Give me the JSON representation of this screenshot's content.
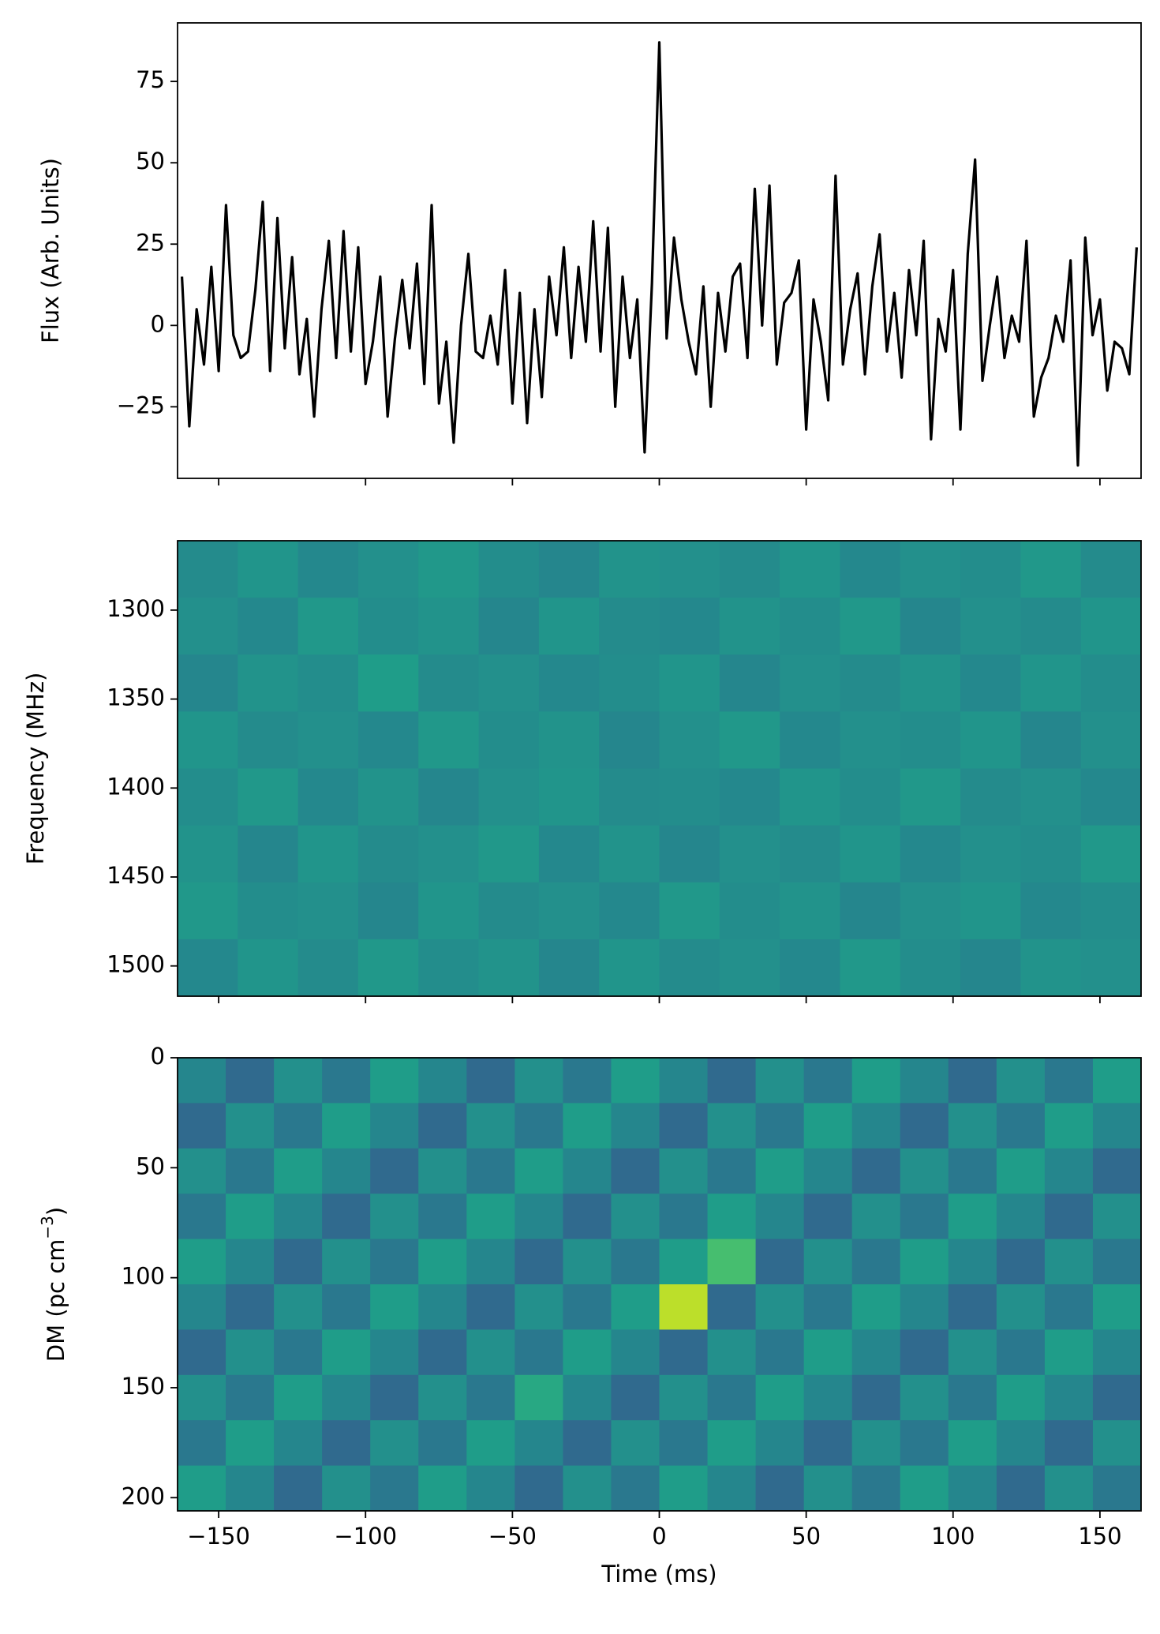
{
  "chart_data": [
    {
      "type": "line",
      "ylabel": "Flux (Arb. Units)",
      "color": "#000000",
      "x": [
        -162.5,
        -160,
        -157.5,
        -155,
        -152.5,
        -150,
        -147.5,
        -145,
        -142.5,
        -140,
        -137.5,
        -135,
        -132.5,
        -130,
        -127.5,
        -125,
        -122.5,
        -120,
        -117.5,
        -115,
        -112.5,
        -110,
        -107.5,
        -105,
        -102.5,
        -100,
        -97.5,
        -95,
        -92.5,
        -90,
        -87.5,
        -85,
        -82.5,
        -80,
        -77.5,
        -75,
        -72.5,
        -70,
        -67.5,
        -65,
        -62.5,
        -60,
        -57.5,
        -55,
        -52.5,
        -50,
        -47.5,
        -45,
        -42.5,
        -40,
        -37.5,
        -35,
        -32.5,
        -30,
        -27.5,
        -25,
        -22.5,
        -20,
        -17.5,
        -15,
        -12.5,
        -10,
        -7.5,
        -5,
        -2.5,
        0,
        2.5,
        5,
        7.5,
        10,
        12.5,
        15,
        17.5,
        20,
        22.5,
        25,
        27.5,
        30,
        32.5,
        35,
        37.5,
        40,
        42.5,
        45,
        47.5,
        50,
        52.5,
        55,
        57.5,
        60,
        62.5,
        65,
        67.5,
        70,
        72.5,
        75,
        77.5,
        80,
        82.5,
        85,
        87.5,
        90,
        92.5,
        95,
        97.5,
        100,
        102.5,
        105,
        107.5,
        110,
        112.5,
        115,
        117.5,
        120,
        122.5,
        125,
        127.5,
        130,
        132.5,
        135,
        137.5,
        140,
        142.5,
        145,
        147.5,
        150,
        152.5,
        155,
        157.5,
        160,
        162.5
      ],
      "values": [
        15,
        -31,
        5,
        -12,
        18,
        -14,
        37,
        -3,
        -10,
        -8,
        11,
        38,
        -14,
        33,
        -7,
        21,
        -15,
        2,
        -28,
        5,
        26,
        -10,
        29,
        -8,
        24,
        -18,
        -5,
        15,
        -28,
        -4,
        14,
        -7,
        19,
        -18,
        37,
        -24,
        -5,
        -36,
        0,
        22,
        -8,
        -10,
        3,
        -12,
        17,
        -24,
        10,
        -30,
        5,
        -22,
        15,
        -3,
        24,
        -10,
        18,
        -5,
        32,
        -8,
        30,
        -25,
        15,
        -10,
        8,
        -39,
        13,
        87,
        -4,
        27,
        8,
        -5,
        -15,
        12,
        -25,
        10,
        -8,
        15,
        19,
        -10,
        42,
        0,
        43,
        -12,
        7,
        10,
        20,
        -32,
        8,
        -5,
        -23,
        46,
        -12,
        5,
        16,
        -15,
        12,
        28,
        -8,
        10,
        -16,
        17,
        -3,
        26,
        -35,
        2,
        -8,
        17,
        -32,
        22,
        51,
        -17,
        0,
        15,
        -10,
        3,
        -5,
        26,
        -28,
        -16,
        -10,
        3,
        -5,
        20,
        -43,
        27,
        -3,
        8,
        -20,
        -5,
        -7,
        -15,
        24
      ],
      "xlim": [
        -164,
        164
      ],
      "xticks": [
        -150,
        -100,
        -50,
        0,
        50,
        100,
        150
      ],
      "ylim": [
        -47,
        93
      ],
      "yticks": [
        {
          "value": -25,
          "label": "−25"
        },
        0,
        25,
        50,
        75
      ]
    },
    {
      "type": "heatmap",
      "ylabel": "Frequency (MHz)",
      "colormap": "viridis",
      "xlim": [
        -164,
        164
      ],
      "xticks": [
        -150,
        -100,
        -50,
        0,
        50,
        100,
        150
      ],
      "ylim": [
        1517,
        1261
      ],
      "yticks": [
        1300,
        1350,
        1400,
        1450,
        1500
      ],
      "z": [
        [
          0.48,
          0.52,
          0.47,
          0.5,
          0.53,
          0.49,
          0.46,
          0.51,
          0.5,
          0.48,
          0.52,
          0.47,
          0.5,
          0.49,
          0.53,
          0.48
        ],
        [
          0.5,
          0.47,
          0.53,
          0.49,
          0.51,
          0.46,
          0.52,
          0.48,
          0.47,
          0.51,
          0.49,
          0.53,
          0.46,
          0.5,
          0.48,
          0.52
        ],
        [
          0.46,
          0.51,
          0.49,
          0.55,
          0.48,
          0.5,
          0.47,
          0.49,
          0.52,
          0.46,
          0.5,
          0.48,
          0.51,
          0.47,
          0.52,
          0.49
        ],
        [
          0.52,
          0.48,
          0.5,
          0.47,
          0.53,
          0.49,
          0.51,
          0.46,
          0.5,
          0.53,
          0.47,
          0.5,
          0.49,
          0.52,
          0.46,
          0.5
        ],
        [
          0.49,
          0.53,
          0.47,
          0.51,
          0.46,
          0.5,
          0.52,
          0.48,
          0.49,
          0.47,
          0.52,
          0.49,
          0.53,
          0.48,
          0.5,
          0.47
        ],
        [
          0.51,
          0.46,
          0.52,
          0.48,
          0.5,
          0.53,
          0.47,
          0.51,
          0.46,
          0.5,
          0.48,
          0.52,
          0.47,
          0.5,
          0.49,
          0.53
        ],
        [
          0.53,
          0.49,
          0.5,
          0.46,
          0.52,
          0.48,
          0.5,
          0.47,
          0.53,
          0.49,
          0.51,
          0.46,
          0.5,
          0.52,
          0.47,
          0.49
        ],
        [
          0.47,
          0.52,
          0.48,
          0.53,
          0.49,
          0.51,
          0.46,
          0.52,
          0.48,
          0.5,
          0.47,
          0.53,
          0.49,
          0.46,
          0.51,
          0.5
        ]
      ]
    },
    {
      "type": "heatmap",
      "ylabel": [
        "DM (pc cm",
        "−3",
        ")"
      ],
      "xlabel": "Time (ms)",
      "colormap": "viridis",
      "xlim": [
        -164,
        164
      ],
      "xticks": [
        {
          "value": -150,
          "label": "−150"
        },
        {
          "value": -100,
          "label": "−100"
        },
        {
          "value": -50,
          "label": "−50"
        },
        0,
        50,
        100,
        150
      ],
      "ylim": [
        206,
        0
      ],
      "yticks": [
        0,
        50,
        100,
        150,
        200
      ],
      "z": [
        [
          0.46,
          0.34,
          0.5,
          0.4,
          0.55,
          0.46,
          0.34,
          0.5,
          0.4,
          0.55,
          0.46,
          0.34,
          0.5,
          0.4,
          0.55,
          0.46,
          0.34,
          0.5,
          0.4,
          0.55
        ],
        [
          0.34,
          0.5,
          0.4,
          0.55,
          0.46,
          0.34,
          0.5,
          0.4,
          0.55,
          0.46,
          0.34,
          0.5,
          0.4,
          0.55,
          0.46,
          0.34,
          0.5,
          0.4,
          0.55,
          0.46
        ],
        [
          0.5,
          0.4,
          0.55,
          0.46,
          0.34,
          0.5,
          0.4,
          0.55,
          0.46,
          0.34,
          0.5,
          0.4,
          0.55,
          0.46,
          0.34,
          0.5,
          0.4,
          0.55,
          0.46,
          0.34
        ],
        [
          0.4,
          0.55,
          0.46,
          0.34,
          0.5,
          0.4,
          0.55,
          0.46,
          0.34,
          0.5,
          0.4,
          0.55,
          0.46,
          0.34,
          0.5,
          0.4,
          0.55,
          0.46,
          0.34,
          0.5
        ],
        [
          0.55,
          0.46,
          0.34,
          0.5,
          0.4,
          0.55,
          0.46,
          0.34,
          0.5,
          0.4,
          0.55,
          0.7,
          0.34,
          0.5,
          0.4,
          0.55,
          0.46,
          0.34,
          0.5,
          0.4
        ],
        [
          0.46,
          0.34,
          0.5,
          0.4,
          0.55,
          0.46,
          0.34,
          0.5,
          0.4,
          0.55,
          0.9,
          0.34,
          0.5,
          0.4,
          0.55,
          0.46,
          0.34,
          0.5,
          0.4,
          0.55
        ],
        [
          0.34,
          0.5,
          0.4,
          0.55,
          0.46,
          0.34,
          0.5,
          0.4,
          0.55,
          0.46,
          0.34,
          0.5,
          0.4,
          0.55,
          0.46,
          0.34,
          0.5,
          0.4,
          0.55,
          0.46
        ],
        [
          0.5,
          0.4,
          0.55,
          0.46,
          0.34,
          0.5,
          0.4,
          0.6,
          0.46,
          0.34,
          0.5,
          0.4,
          0.55,
          0.46,
          0.34,
          0.5,
          0.4,
          0.55,
          0.46,
          0.34
        ],
        [
          0.4,
          0.55,
          0.46,
          0.34,
          0.5,
          0.4,
          0.55,
          0.46,
          0.34,
          0.5,
          0.4,
          0.55,
          0.46,
          0.34,
          0.5,
          0.4,
          0.55,
          0.46,
          0.34,
          0.5
        ],
        [
          0.55,
          0.46,
          0.34,
          0.5,
          0.4,
          0.55,
          0.46,
          0.34,
          0.5,
          0.4,
          0.55,
          0.46,
          0.34,
          0.5,
          0.4,
          0.55,
          0.46,
          0.34,
          0.5,
          0.4
        ]
      ]
    }
  ]
}
